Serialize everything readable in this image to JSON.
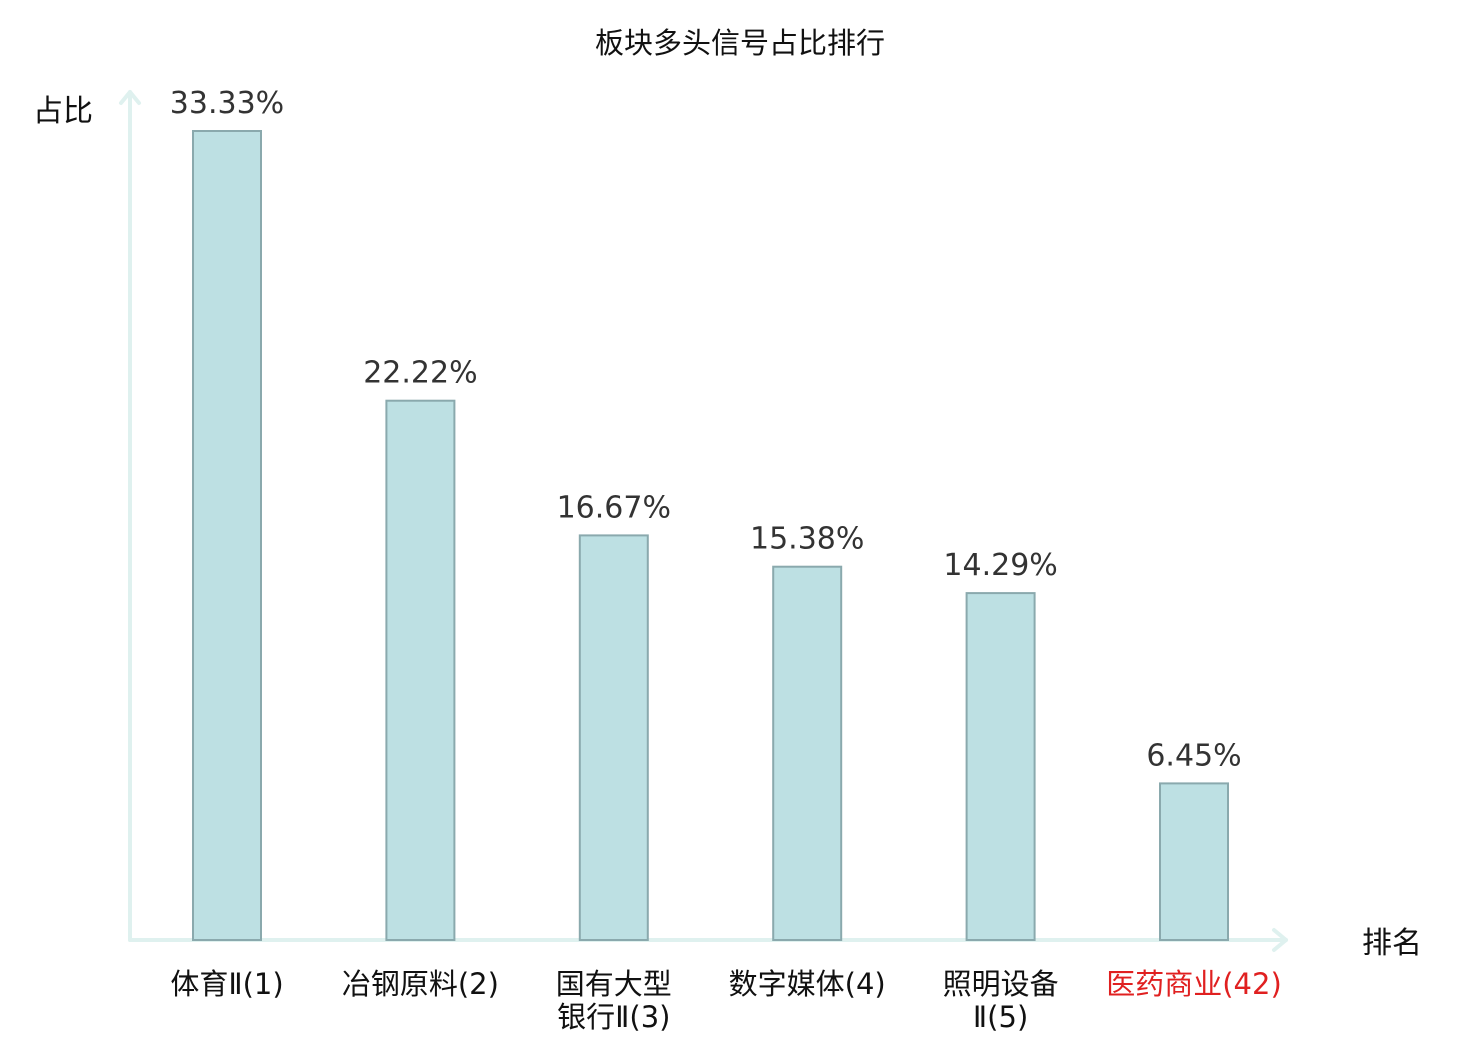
{
  "chart_data": {
    "type": "bar",
    "title": "板块多头信号占比排行",
    "xlabel": "排名",
    "ylabel": "占比",
    "categories": [
      "体育Ⅱ(1)",
      "冶钢原料(2)",
      "国有大型银行Ⅱ(3)",
      "数字媒体(4)",
      "照明设备Ⅱ(5)",
      "医药商业(42)"
    ],
    "category_lines": [
      [
        "体育Ⅱ(1)"
      ],
      [
        "冶钢原料(2)"
      ],
      [
        "国有大型",
        "银行Ⅱ(3)"
      ],
      [
        "数字媒体(4)"
      ],
      [
        "照明设备",
        "Ⅱ(5)"
      ],
      [
        "医药商业(42)"
      ]
    ],
    "values": [
      33.33,
      22.22,
      16.67,
      15.38,
      14.29,
      6.45
    ],
    "value_labels": [
      "33.33%",
      "22.22%",
      "16.67%",
      "15.38%",
      "14.29%",
      "6.45%"
    ],
    "highlight_index": 5,
    "ylim": [
      0,
      33.33
    ],
    "grid": false,
    "colors": {
      "bar_fill": "#bde0e3",
      "bar_stroke": "#8aa9ad",
      "axis": "#dff1ef",
      "label": "#111111",
      "value_label": "#333333",
      "highlight": "#e02020"
    }
  }
}
